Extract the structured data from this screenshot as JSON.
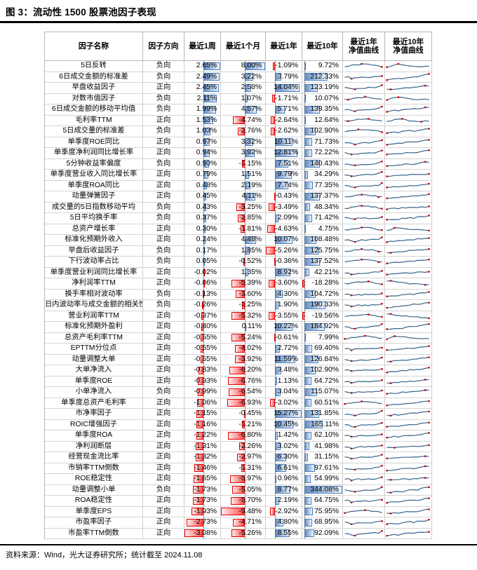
{
  "title": "图 3：流动性 1500 股票池因子表现",
  "footer": {
    "source": "资料来源：Wind，光大证券研究所；统计截至 2024.11.08"
  },
  "colors": {
    "bar_positive": "#638ec6",
    "bar_positive_light": "#eef4fc",
    "bar_positive_border": "#4a7ebb",
    "bar_negative": "#ff4d4d",
    "bar_negative_light": "#ffecec",
    "bar_negative_border": "#e30000",
    "sparkline": "#36648b",
    "marker": "#cc0000",
    "rule": "#000000",
    "grid": "#cfcfcf"
  },
  "table": {
    "headers": [
      "因子名称",
      "因子方向",
      "最近1周",
      "最近1个月",
      "最近1年",
      "最近10年",
      "最近1年\n净值曲线",
      "最近10年\n净值曲线"
    ],
    "value_columns": [
      "w1",
      "m1",
      "y1",
      "y10"
    ],
    "rows": [
      {
        "name": "5日反转",
        "dir": "负向",
        "w1": "2.65%",
        "m1": "8.00%",
        "y1": "-1.09%",
        "y10": "9.72%"
      },
      {
        "name": "6日成交金额的标准差",
        "dir": "负向",
        "w1": "2.49%",
        "m1": "3.22%",
        "y1": "3.79%",
        "y10": "212.33%"
      },
      {
        "name": "早盘收益因子",
        "dir": "正向",
        "w1": "2.45%",
        "m1": "2.58%",
        "y1": "14.04%",
        "y10": "123.19%"
      },
      {
        "name": "对数市值因子",
        "dir": "负向",
        "w1": "2.11%",
        "m1": "1.07%",
        "y1": "-1.71%",
        "y10": "10.07%"
      },
      {
        "name": "6日成交金额的移动平均值",
        "dir": "负向",
        "w1": "1.99%",
        "m1": "4.57%",
        "y1": "5.71%",
        "y10": "139.35%"
      },
      {
        "name": "毛利率TTM",
        "dir": "正向",
        "w1": "1.53%",
        "m1": "-4.74%",
        "y1": "-2.64%",
        "y10": "12.64%"
      },
      {
        "name": "5日成交量的标准差",
        "dir": "负向",
        "w1": "1.03%",
        "m1": "-2.76%",
        "y1": "-2.62%",
        "y10": "102.90%"
      },
      {
        "name": "单季度ROE同比",
        "dir": "正向",
        "w1": "0.97%",
        "m1": "3.32%",
        "y1": "10.11%",
        "y10": "71.73%"
      },
      {
        "name": "单季度净利润同比增长率",
        "dir": "正向",
        "w1": "0.94%",
        "m1": "3.92%",
        "y1": "12.81%",
        "y10": "72.22%"
      },
      {
        "name": "5分钟收益率偏度",
        "dir": "负向",
        "w1": "0.90%",
        "m1": "-1.15%",
        "y1": "7.51%",
        "y10": "140.43%"
      },
      {
        "name": "单季度营业收入同比增长率",
        "dir": "正向",
        "w1": "0.79%",
        "m1": "1.51%",
        "y1": "9.79%",
        "y10": "34.29%"
      },
      {
        "name": "单季度ROA同比",
        "dir": "正向",
        "w1": "0.48%",
        "m1": "2.19%",
        "y1": "7.74%",
        "y10": "77.35%"
      },
      {
        "name": "动量弹簧因子",
        "dir": "正向",
        "w1": "0.45%",
        "m1": "4.11%",
        "y1": "-0.43%",
        "y10": "137.37%"
      },
      {
        "name": "成交量的5日指数移动平均",
        "dir": "负向",
        "w1": "0.43%",
        "m1": "-3.25%",
        "y1": "-3.49%",
        "y10": "48.34%"
      },
      {
        "name": "5日平均换手率",
        "dir": "负向",
        "w1": "0.37%",
        "m1": "-2.85%",
        "y1": "2.09%",
        "y10": "71.42%"
      },
      {
        "name": "总资产增长率",
        "dir": "正向",
        "w1": "0.30%",
        "m1": "-1.81%",
        "y1": "-4.63%",
        "y10": "4.75%"
      },
      {
        "name": "标准化预期外收入",
        "dir": "正向",
        "w1": "0.24%",
        "m1": "4.48%",
        "y1": "10.07%",
        "y10": "108.48%"
      },
      {
        "name": "早盘后收益因子",
        "dir": "负向",
        "w1": "0.17%",
        "m1": "1.85%",
        "y1": "-5.26%",
        "y10": "125.75%"
      },
      {
        "name": "下行波动率占比",
        "dir": "负向",
        "w1": "0.05%",
        "m1": "-0.52%",
        "y1": "-0.36%",
        "y10": "137.52%"
      },
      {
        "name": "单季度营业利润同比增长率",
        "dir": "正向",
        "w1": "-0.02%",
        "m1": "1.35%",
        "y1": "8.92%",
        "y10": "42.21%"
      },
      {
        "name": "净利润率TTM",
        "dir": "正向",
        "w1": "-0.06%",
        "m1": "-5.39%",
        "y1": "-3.60%",
        "y10": "-18.28%"
      },
      {
        "name": "换手率相对波动率",
        "dir": "负向",
        "w1": "-0.13%",
        "m1": "-3.60%",
        "y1": "4.30%",
        "y10": "104.72%"
      },
      {
        "name": "日内波动率与成交金额的相关性",
        "dir": "负向",
        "w1": "-0.26%",
        "m1": "-1.25%",
        "y1": "1.90%",
        "y10": "190.33%"
      },
      {
        "name": "营业利润率TTM",
        "dir": "正向",
        "w1": "-0.37%",
        "m1": "-5.32%",
        "y1": "-3.55%",
        "y10": "-19.56%"
      },
      {
        "name": "标准化预期外盈利",
        "dir": "正向",
        "w1": "-0.40%",
        "m1": "0.11%",
        "y1": "10.22%",
        "y10": "184.92%"
      },
      {
        "name": "总资产毛利率TTM",
        "dir": "正向",
        "w1": "-0.55%",
        "m1": "-5.24%",
        "y1": "-0.61%",
        "y10": "7.99%"
      },
      {
        "name": "EPTTM分位点",
        "dir": "正向",
        "w1": "-0.55%",
        "m1": "-4.02%",
        "y1": "2.72%",
        "y10": "69.40%"
      },
      {
        "name": "动量调整大单",
        "dir": "正向",
        "w1": "-0.55%",
        "m1": "-3.92%",
        "y1": "11.59%",
        "y10": "126.84%"
      },
      {
        "name": "大单净流入",
        "dir": "正向",
        "w1": "-0.83%",
        "m1": "-6.20%",
        "y1": "3.48%",
        "y10": "102.90%"
      },
      {
        "name": "单季度ROE",
        "dir": "正向",
        "w1": "-0.93%",
        "m1": "-6.76%",
        "y1": "1.13%",
        "y10": "64.72%"
      },
      {
        "name": "小单净流入",
        "dir": "负向",
        "w1": "-0.99%",
        "m1": "-6.54%",
        "y1": "3.04%",
        "y10": "115.07%"
      },
      {
        "name": "单季度总资产毛利率",
        "dir": "正向",
        "w1": "-1.06%",
        "m1": "-6.93%",
        "y1": "-3.02%",
        "y10": "60.51%"
      },
      {
        "name": "市净率因子",
        "dir": "正向",
        "w1": "-1.15%",
        "m1": "-0.45%",
        "y1": "15.27%",
        "y10": "131.85%"
      },
      {
        "name": "ROIC增强因子",
        "dir": "正向",
        "w1": "-1.16%",
        "m1": "-1.21%",
        "y1": "10.45%",
        "y10": "165.11%"
      },
      {
        "name": "单季度ROA",
        "dir": "正向",
        "w1": "-1.22%",
        "m1": "-6.80%",
        "y1": "1.42%",
        "y10": "62.10%"
      },
      {
        "name": "净利润断层",
        "dir": "正向",
        "w1": "-1.31%",
        "m1": "-2.26%",
        "y1": "3.02%",
        "y10": "41.98%"
      },
      {
        "name": "经营现金流比率",
        "dir": "正向",
        "w1": "-1.32%",
        "m1": "-2.97%",
        "y1": "6.30%",
        "y10": "31.15%"
      },
      {
        "name": "市销率TTM倒数",
        "dir": "正向",
        "w1": "-1.46%",
        "m1": "-1.31%",
        "y1": "6.61%",
        "y10": "97.61%"
      },
      {
        "name": "ROE稳定性",
        "dir": "正向",
        "w1": "-1.65%",
        "m1": "-5.97%",
        "y1": "0.96%",
        "y10": "54.99%"
      },
      {
        "name": "动量调整小单",
        "dir": "负向",
        "w1": "-1.73%",
        "m1": "-5.05%",
        "y1": "8.77%",
        "y10": "344.08%"
      },
      {
        "name": "ROA稳定性",
        "dir": "正向",
        "w1": "-1.73%",
        "m1": "-5.70%",
        "y1": "2.19%",
        "y10": "64.75%"
      },
      {
        "name": "单季度EPS",
        "dir": "正向",
        "w1": "-1.93%",
        "m1": "-9.48%",
        "y1": "-2.92%",
        "y10": "75.95%"
      },
      {
        "name": "市盈率因子",
        "dir": "正向",
        "w1": "-2.73%",
        "m1": "-4.71%",
        "y1": "4.80%",
        "y10": "68.95%"
      },
      {
        "name": "市盈率TTM倒数",
        "dir": "正向",
        "w1": "-3.08%",
        "m1": "-5.26%",
        "y1": "8.55%",
        "y10": "92.09%"
      }
    ]
  },
  "sparkline_patterns": {
    "riseEnd": [
      48,
      45,
      30,
      26,
      40,
      46,
      44,
      48,
      52,
      56,
      62,
      85
    ],
    "dipFlat": [
      52,
      50,
      30,
      38,
      46,
      44,
      48,
      46,
      50,
      52,
      55,
      68
    ],
    "humpFall": [
      40,
      45,
      55,
      62,
      68,
      72,
      75,
      70,
      62,
      55,
      46,
      40
    ],
    "decline": [
      75,
      78,
      72,
      64,
      58,
      52,
      46,
      42,
      38,
      34,
      30,
      26
    ],
    "humpFlat": [
      35,
      50,
      68,
      76,
      70,
      58,
      48,
      42,
      40,
      38,
      42,
      40
    ],
    "slowRise": [
      30,
      34,
      38,
      36,
      44,
      48,
      46,
      52,
      56,
      60,
      58,
      64
    ],
    "rise": [
      22,
      28,
      34,
      32,
      42,
      48,
      54,
      52,
      60,
      68,
      74,
      80
    ],
    "strongRise": [
      15,
      18,
      24,
      30,
      28,
      38,
      48,
      58,
      55,
      70,
      82,
      90
    ]
  }
}
